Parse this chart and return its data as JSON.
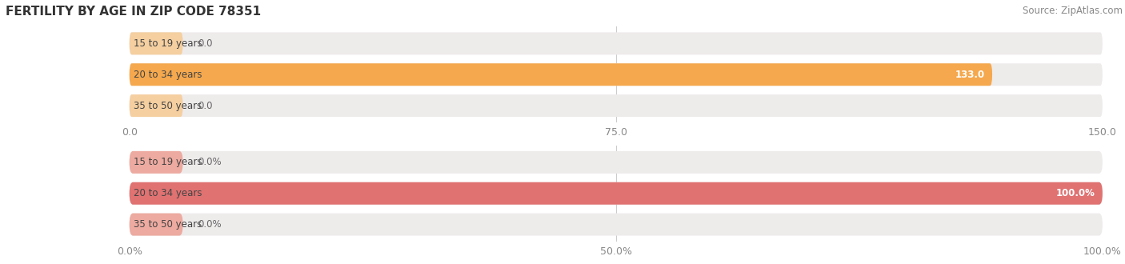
{
  "title": "FERTILITY BY AGE IN ZIP CODE 78351",
  "source": "Source: ZipAtlas.com",
  "top_chart": {
    "categories": [
      "15 to 19 years",
      "20 to 34 years",
      "35 to 50 years"
    ],
    "values": [
      0.0,
      133.0,
      0.0
    ],
    "xlim": [
      0,
      150.0
    ],
    "xticks": [
      0.0,
      75.0,
      150.0
    ],
    "xtick_labels": [
      "0.0",
      "75.0",
      "150.0"
    ],
    "bar_color": "#F5A84D",
    "bar_color_dim": "#F5CFA0",
    "bg_color": "#EEEBEB"
  },
  "bottom_chart": {
    "categories": [
      "15 to 19 years",
      "20 to 34 years",
      "35 to 50 years"
    ],
    "values": [
      0.0,
      100.0,
      0.0
    ],
    "xlim": [
      0,
      100.0
    ],
    "xticks": [
      0.0,
      50.0,
      100.0
    ],
    "xtick_labels": [
      "0.0%",
      "50.0%",
      "100.0%"
    ],
    "bar_color": "#E07272",
    "bar_color_dim": "#EDAAA0",
    "bg_color": "#EEEBEB"
  },
  "title_fontsize": 11,
  "source_fontsize": 8.5,
  "tick_fontsize": 9,
  "label_fontsize": 8.5,
  "cat_fontsize": 8.5
}
